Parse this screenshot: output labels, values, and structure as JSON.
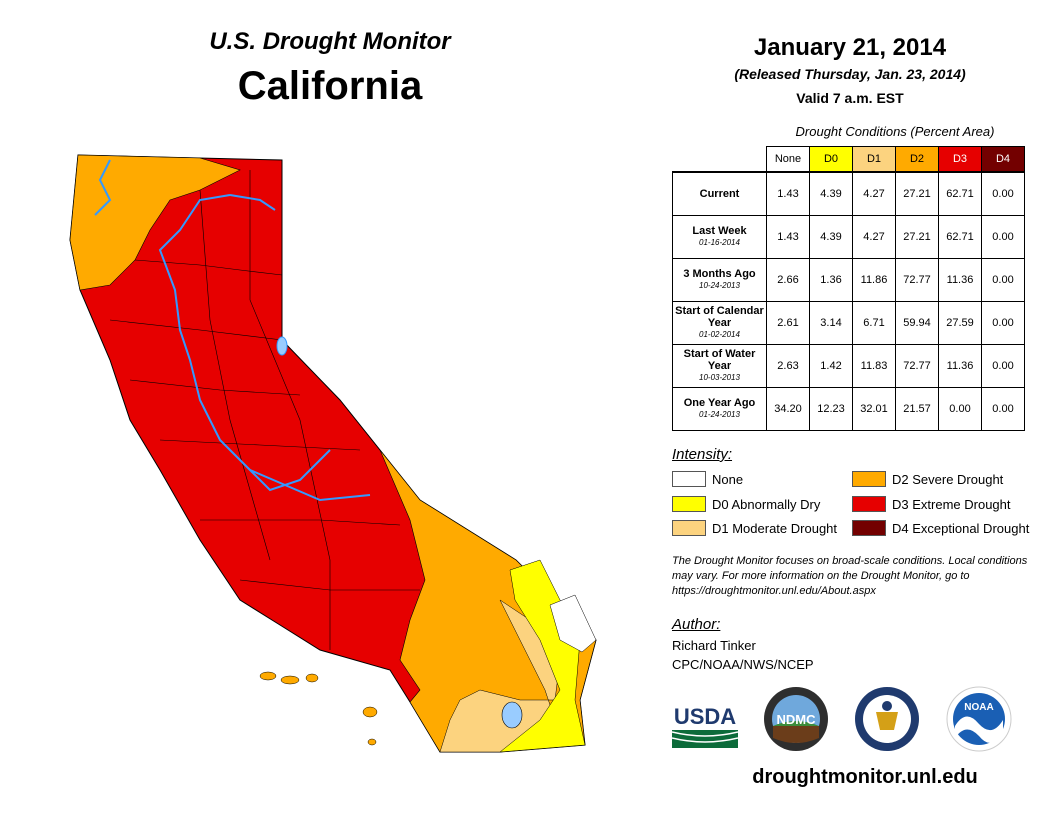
{
  "header": {
    "title": "U.S. Drought Monitor",
    "region": "California",
    "date": "January 21, 2014",
    "released": "(Released Thursday, Jan. 23, 2014)",
    "valid": "Valid 7 a.m. EST"
  },
  "table": {
    "caption": "Drought Conditions (Percent Area)",
    "columns": [
      "None",
      "D0",
      "D1",
      "D2",
      "D3",
      "D4"
    ],
    "rows": [
      {
        "label": "Current",
        "date": "",
        "values": [
          "1.43",
          "4.39",
          "4.27",
          "27.21",
          "62.71",
          "0.00"
        ]
      },
      {
        "label": "Last Week",
        "date": "01-16-2014",
        "values": [
          "1.43",
          "4.39",
          "4.27",
          "27.21",
          "62.71",
          "0.00"
        ]
      },
      {
        "label": "3 Months Ago",
        "date": "10-24-2013",
        "values": [
          "2.66",
          "1.36",
          "11.86",
          "72.77",
          "11.36",
          "0.00"
        ]
      },
      {
        "label": "Start of Calendar Year",
        "date": "01-02-2014",
        "values": [
          "2.61",
          "3.14",
          "6.71",
          "59.94",
          "27.59",
          "0.00"
        ]
      },
      {
        "label": "Start of Water Year",
        "date": "10-03-2013",
        "values": [
          "2.63",
          "1.42",
          "11.83",
          "72.77",
          "11.36",
          "0.00"
        ]
      },
      {
        "label": "One Year Ago",
        "date": "01-24-2013",
        "values": [
          "34.20",
          "12.23",
          "32.01",
          "21.57",
          "0.00",
          "0.00"
        ]
      }
    ]
  },
  "legend": {
    "label": "Intensity:",
    "items": [
      {
        "label": "None",
        "color": "#ffffff"
      },
      {
        "label": "D0 Abnormally Dry",
        "color": "#ffff00"
      },
      {
        "label": "D1 Moderate Drought",
        "color": "#fcd37f"
      },
      {
        "label": "D2 Severe Drought",
        "color": "#ffaa00"
      },
      {
        "label": "D3 Extreme Drought",
        "color": "#e60000"
      },
      {
        "label": "D4 Exceptional Drought",
        "color": "#730000"
      }
    ]
  },
  "note": "The Drought Monitor focuses on broad-scale conditions. Local conditions may vary. For more information on the Drought Monitor, go to https://droughtmonitor.unl.edu/About.aspx",
  "author": {
    "label": "Author:",
    "name": "Richard Tinker",
    "org": "CPC/NOAA/NWS/NCEP"
  },
  "logos": {
    "usda": "USDA",
    "ndmc": "NDMC",
    "noaa": "NOAA"
  },
  "website": "droughtmonitor.unl.edu"
}
